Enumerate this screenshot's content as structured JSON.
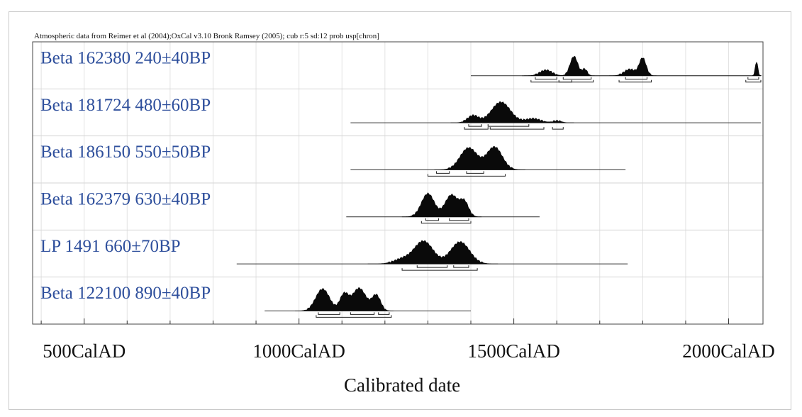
{
  "chart_data": {
    "type": "area",
    "subtitle": "Atmospheric data from Reimer et al (2004);OxCal v3.10 Bronk Ramsey (2005); cub r:5 sd:12 prob usp[chron]",
    "xlabel": "Calibrated date",
    "ylabel": "",
    "xlim": [
      380,
      2080
    ],
    "x_tick_labels": [
      "500CalAD",
      "1000CalAD",
      "1500CalAD",
      "2000CalAD"
    ],
    "x_tick_values": [
      500,
      1000,
      1500,
      2000
    ],
    "grid": true,
    "samples": [
      {
        "label": "Beta 162380  240±40BP",
        "range": [
          1400,
          2075
        ],
        "peaks": [
          {
            "center": 1575,
            "width": 14,
            "height": 0.22
          },
          {
            "center": 1640,
            "width": 9,
            "height": 0.75
          },
          {
            "center": 1665,
            "width": 6,
            "height": 0.25
          },
          {
            "center": 1770,
            "width": 13,
            "height": 0.25
          },
          {
            "center": 1800,
            "width": 8,
            "height": 0.68
          },
          {
            "center": 2065,
            "width": 3,
            "height": 0.55
          }
        ],
        "ranges_68": [
          [
            1550,
            1600
          ],
          [
            1615,
            1680
          ],
          [
            1760,
            1810
          ],
          [
            2045,
            2070
          ]
        ],
        "ranges_95": [
          [
            1540,
            1635
          ],
          [
            1605,
            1685
          ],
          [
            1745,
            1820
          ],
          [
            2040,
            2075
          ]
        ]
      },
      {
        "label": "Beta 181724  480±60BP",
        "range": [
          1120,
          2075
        ],
        "peaks": [
          {
            "center": 1405,
            "width": 13,
            "height": 0.28
          },
          {
            "center": 1470,
            "width": 22,
            "height": 0.8
          },
          {
            "center": 1545,
            "width": 18,
            "height": 0.16
          },
          {
            "center": 1600,
            "width": 10,
            "height": 0.08
          }
        ],
        "ranges_68": [
          [
            1395,
            1425
          ],
          [
            1440,
            1535
          ]
        ],
        "ranges_95": [
          [
            1385,
            1440
          ],
          [
            1445,
            1570
          ],
          [
            1590,
            1615
          ]
        ]
      },
      {
        "label": "Beta 186150  550±50BP",
        "range": [
          1120,
          1760
        ],
        "peaks": [
          {
            "center": 1395,
            "width": 20,
            "height": 0.85
          },
          {
            "center": 1455,
            "width": 18,
            "height": 0.88
          }
        ],
        "ranges_68": [
          [
            1320,
            1350
          ],
          [
            1390,
            1430
          ]
        ],
        "ranges_95": [
          [
            1300,
            1480
          ]
        ]
      },
      {
        "label": "Beta 162379  630±40BP",
        "range": [
          1110,
          1560
        ],
        "peaks": [
          {
            "center": 1300,
            "width": 15,
            "height": 0.9
          },
          {
            "center": 1355,
            "width": 15,
            "height": 0.85
          },
          {
            "center": 1385,
            "width": 10,
            "height": 0.55
          }
        ],
        "ranges_68": [
          [
            1295,
            1325
          ],
          [
            1350,
            1395
          ]
        ],
        "ranges_95": [
          [
            1285,
            1400
          ]
        ]
      },
      {
        "label": "LP 1491  660±70BP",
        "range": [
          855,
          1765
        ],
        "peaks": [
          {
            "center": 1240,
            "width": 20,
            "height": 0.18
          },
          {
            "center": 1290,
            "width": 22,
            "height": 0.88
          },
          {
            "center": 1375,
            "width": 22,
            "height": 0.85
          }
        ],
        "ranges_68": [
          [
            1275,
            1345
          ],
          [
            1360,
            1395
          ]
        ],
        "ranges_95": [
          [
            1240,
            1415
          ]
        ]
      },
      {
        "label": "Beta 122100  890±40BP",
        "range": [
          920,
          1400
        ],
        "peaks": [
          {
            "center": 1055,
            "width": 16,
            "height": 0.85
          },
          {
            "center": 1105,
            "width": 10,
            "height": 0.62
          },
          {
            "center": 1140,
            "width": 16,
            "height": 0.88
          },
          {
            "center": 1180,
            "width": 10,
            "height": 0.6
          }
        ],
        "ranges_68": [
          [
            1045,
            1095
          ],
          [
            1120,
            1175
          ],
          [
            1185,
            1210
          ]
        ],
        "ranges_95": [
          [
            1040,
            1215
          ]
        ]
      }
    ]
  }
}
